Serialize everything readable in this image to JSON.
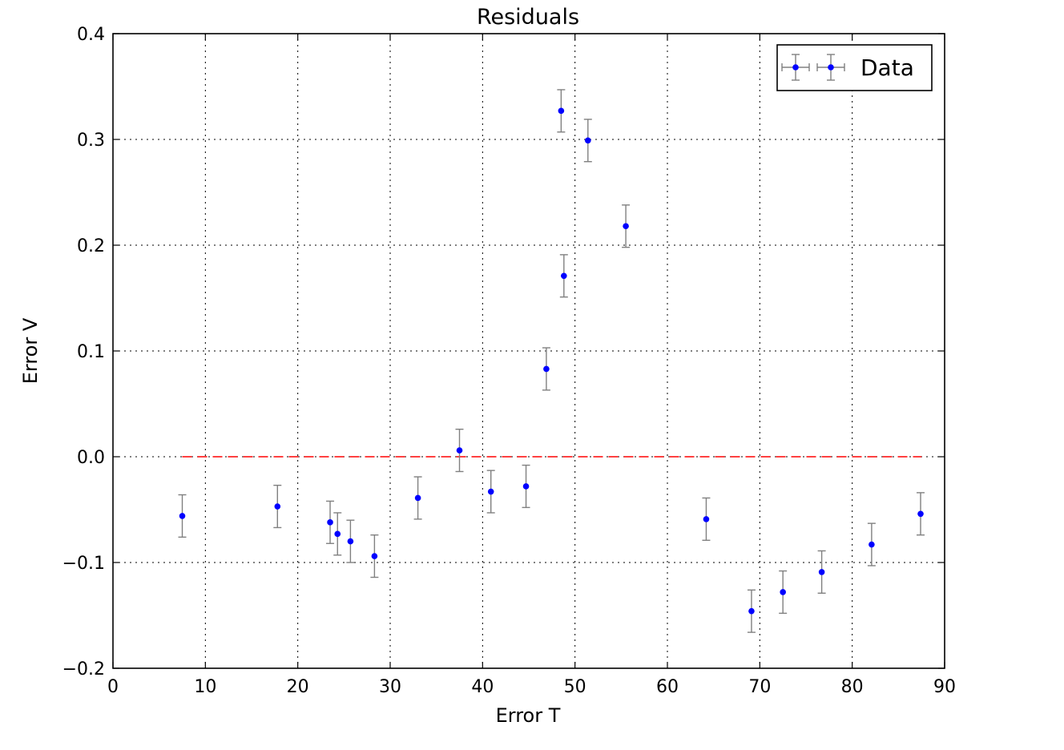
{
  "chart_data": {
    "type": "scatter",
    "title": "Residuals",
    "xlabel": "Error T",
    "ylabel": "Error V",
    "xlim": [
      0,
      90
    ],
    "ylim": [
      -0.2,
      0.4
    ],
    "xticks": [
      0,
      10,
      20,
      30,
      40,
      50,
      60,
      70,
      80,
      90
    ],
    "yticks": [
      -0.2,
      -0.1,
      0.0,
      0.1,
      0.2,
      0.3,
      0.4
    ],
    "ytick_labels": [
      "−0.2",
      "−0.1",
      "0.0",
      "0.1",
      "0.2",
      "0.3",
      "0.4"
    ],
    "grid": true,
    "legend": {
      "position": "top-right",
      "label": "Data"
    },
    "reference_line": {
      "y": 0.0,
      "x_from": 7.5,
      "x_to": 87.5,
      "style": "dashed",
      "color": "#ff0000"
    },
    "colors": {
      "marker": "#0000ff",
      "errorbar": "#808080"
    },
    "series": [
      {
        "name": "Data",
        "points": [
          {
            "x": 7.5,
            "y": -0.056,
            "yerr": 0.02
          },
          {
            "x": 17.8,
            "y": -0.047,
            "yerr": 0.02
          },
          {
            "x": 23.5,
            "y": -0.062,
            "yerr": 0.02
          },
          {
            "x": 24.3,
            "y": -0.073,
            "yerr": 0.02
          },
          {
            "x": 25.7,
            "y": -0.08,
            "yerr": 0.02
          },
          {
            "x": 28.3,
            "y": -0.094,
            "yerr": 0.02
          },
          {
            "x": 33.0,
            "y": -0.039,
            "yerr": 0.02
          },
          {
            "x": 37.5,
            "y": 0.006,
            "yerr": 0.02
          },
          {
            "x": 40.9,
            "y": -0.033,
            "yerr": 0.02
          },
          {
            "x": 44.7,
            "y": -0.028,
            "yerr": 0.02
          },
          {
            "x": 46.9,
            "y": 0.083,
            "yerr": 0.02
          },
          {
            "x": 48.5,
            "y": 0.327,
            "yerr": 0.02
          },
          {
            "x": 48.8,
            "y": 0.171,
            "yerr": 0.02
          },
          {
            "x": 51.4,
            "y": 0.299,
            "yerr": 0.02
          },
          {
            "x": 55.5,
            "y": 0.218,
            "yerr": 0.02
          },
          {
            "x": 64.2,
            "y": -0.059,
            "yerr": 0.02
          },
          {
            "x": 69.1,
            "y": -0.146,
            "yerr": 0.02
          },
          {
            "x": 72.5,
            "y": -0.128,
            "yerr": 0.02
          },
          {
            "x": 76.7,
            "y": -0.109,
            "yerr": 0.02
          },
          {
            "x": 82.1,
            "y": -0.083,
            "yerr": 0.02
          },
          {
            "x": 87.4,
            "y": -0.054,
            "yerr": 0.02
          }
        ]
      }
    ]
  }
}
